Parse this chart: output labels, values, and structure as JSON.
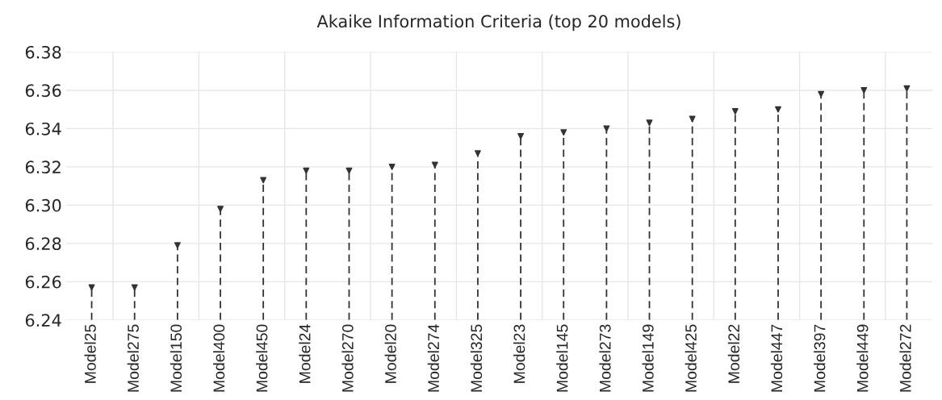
{
  "chart_data": {
    "type": "lollipop",
    "title": "Akaike Information Criteria (top 20 models)",
    "categories": [
      "Model25",
      "Model275",
      "Model150",
      "Model400",
      "Model450",
      "Model24",
      "Model270",
      "Model20",
      "Model274",
      "Model325",
      "Model23",
      "Model145",
      "Model273",
      "Model149",
      "Model425",
      "Model22",
      "Model447",
      "Model397",
      "Model449",
      "Model272"
    ],
    "series": [
      {
        "color": "#333333",
        "values": [
          6.257,
          6.257,
          6.279,
          6.298,
          6.313,
          6.318,
          6.318,
          6.32,
          6.321,
          6.327,
          6.336,
          6.338,
          6.34,
          6.343,
          6.345,
          6.349,
          6.35,
          6.358,
          6.36,
          6.361
        ]
      }
    ],
    "ylim": [
      6.24,
      6.38
    ],
    "yticks": [
      6.24,
      6.26,
      6.28,
      {
        "value": 6.3,
        "label": "6.30"
      },
      6.32,
      6.34,
      6.36,
      6.38
    ],
    "grid": true,
    "marker": "triangle",
    "line_style": "dashed"
  }
}
